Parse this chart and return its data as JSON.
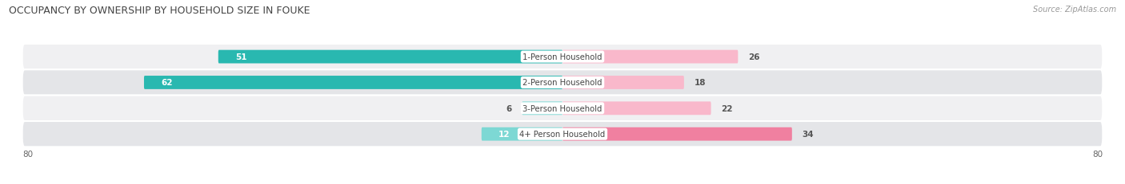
{
  "title": "OCCUPANCY BY OWNERSHIP BY HOUSEHOLD SIZE IN FOUKE",
  "source": "Source: ZipAtlas.com",
  "categories": [
    "1-Person Household",
    "2-Person Household",
    "3-Person Household",
    "4+ Person Household"
  ],
  "owner_values": [
    51,
    62,
    6,
    12
  ],
  "renter_values": [
    26,
    18,
    22,
    34
  ],
  "owner_color": "#29b8b0",
  "renter_color": "#f080a0",
  "owner_color_light": "#7dd8d4",
  "renter_color_light": "#f9b8cb",
  "row_bg_colors": [
    "#f0f0f2",
    "#e4e5e8"
  ],
  "axis_limit": 80,
  "title_fontsize": 9,
  "bar_height": 0.52,
  "figsize": [
    14.06,
    2.32
  ],
  "dpi": 100
}
